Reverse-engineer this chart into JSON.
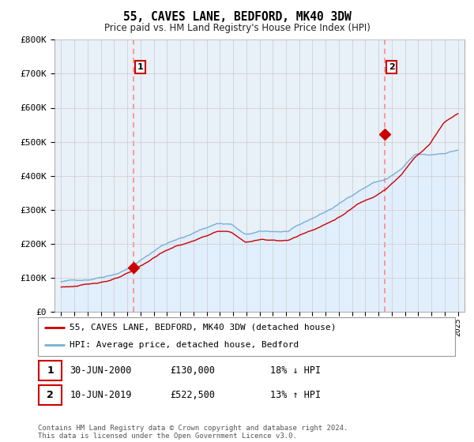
{
  "title": "55, CAVES LANE, BEDFORD, MK40 3DW",
  "subtitle": "Price paid vs. HM Land Registry's House Price Index (HPI)",
  "ylim": [
    0,
    800000
  ],
  "yticks": [
    0,
    100000,
    200000,
    300000,
    400000,
    500000,
    600000,
    700000,
    800000
  ],
  "ytick_labels": [
    "£0",
    "£100K",
    "£200K",
    "£300K",
    "£400K",
    "£500K",
    "£600K",
    "£700K",
    "£800K"
  ],
  "sale1_year": 2000.45,
  "sale1_price": 130000,
  "sale2_year": 2019.45,
  "sale2_price": 522500,
  "sale1_date": "30-JUN-2000",
  "sale1_price_str": "£130,000",
  "sale1_hpi_str": "18% ↓ HPI",
  "sale2_date": "10-JUN-2019",
  "sale2_price_str": "£522,500",
  "sale2_hpi_str": "13% ↑ HPI",
  "red_color": "#cc0000",
  "blue_color": "#7ab0d4",
  "blue_fill_color": "#ddeeff",
  "dashed_line_color": "#ff8888",
  "grid_color": "#cccccc",
  "bg_color": "#e8f0f8",
  "legend_label_red": "55, CAVES LANE, BEDFORD, MK40 3DW (detached house)",
  "legend_label_blue": "HPI: Average price, detached house, Bedford",
  "footnote": "Contains HM Land Registry data © Crown copyright and database right 2024.\nThis data is licensed under the Open Government Licence v3.0.",
  "xlim_left": 1994.5,
  "xlim_right": 2025.5
}
